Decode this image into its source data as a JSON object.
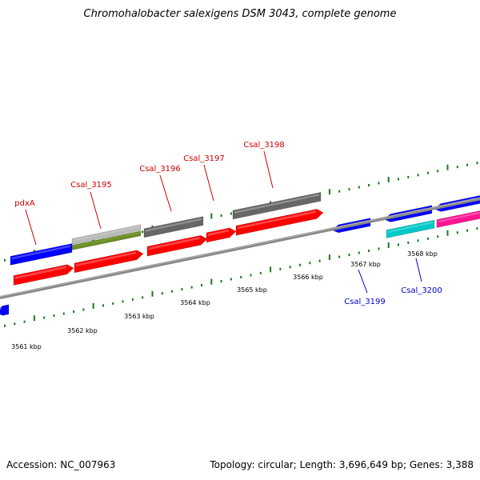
{
  "title": "Chromohalobacter salexigens DSM 3043, complete genome",
  "footer": {
    "accession": "Accession: NC_007963",
    "summary": "Topology: circular; Length: 3,696,649 bp; Genes: 3,388"
  },
  "kbp_labels": [
    "3561 kbp",
    "3562 kbp",
    "3563 kbp",
    "3564 kbp",
    "3565 kbp",
    "3566 kbp",
    "3567 kbp",
    "3568 kbp"
  ],
  "gene_labels": [
    {
      "text": "pdxA",
      "strand": "forward"
    },
    {
      "text": "Csal_3195",
      "strand": "forward"
    },
    {
      "text": "Csal_3196",
      "strand": "forward"
    },
    {
      "text": "Csal_3197",
      "strand": "forward"
    },
    {
      "text": "Csal_3198",
      "strand": "forward"
    },
    {
      "text": "Csal_3199",
      "strand": "reverse"
    },
    {
      "text": "Csal_3200",
      "strand": "reverse"
    }
  ],
  "colors": {
    "forward_label": "#cc0000",
    "reverse_label": "#0000cc",
    "cds": "#ff0000",
    "blue_track": "#0000ff",
    "gray_track": "#666666",
    "light_gray_track": "#bbbbbb",
    "olive_track": "#6b8e23",
    "cyan_track": "#00c8c8",
    "magenta_track": "#ff1493",
    "backbone": "#888888",
    "tick": "#1a7a1a"
  }
}
